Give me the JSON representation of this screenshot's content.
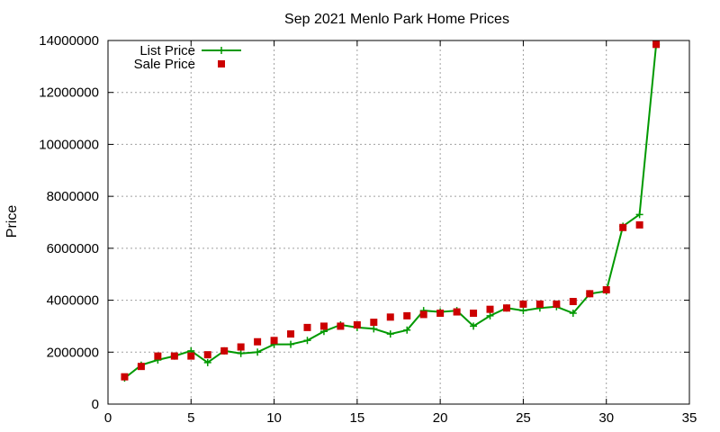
{
  "chart_data": {
    "type": "line",
    "title": "Sep 2021 Menlo Park Home Prices",
    "xlabel": "",
    "ylabel": "Price",
    "xlim": [
      0,
      35
    ],
    "ylim": [
      0,
      14000000
    ],
    "xticks": [
      0,
      5,
      10,
      15,
      20,
      25,
      30,
      35
    ],
    "yticks": [
      0,
      2000000,
      4000000,
      6000000,
      8000000,
      10000000,
      12000000,
      14000000
    ],
    "xtick_labels": [
      "0",
      "5",
      "10",
      "15",
      "20",
      "25",
      "30",
      "35"
    ],
    "ytick_labels": [
      "0",
      "2000000",
      "4000000",
      "6000000",
      "8000000",
      "10000000",
      "12000000",
      "14000000"
    ],
    "grid": true,
    "legend_position": "top-left",
    "series": [
      {
        "name": "List Price",
        "style": "line-plus",
        "color": "#009900",
        "x": [
          1,
          2,
          3,
          4,
          5,
          6,
          7,
          8,
          9,
          10,
          11,
          12,
          13,
          14,
          15,
          16,
          17,
          18,
          19,
          20,
          21,
          22,
          23,
          24,
          25,
          26,
          27,
          28,
          29,
          30,
          31,
          32,
          33
        ],
        "y": [
          1000000,
          1500000,
          1700000,
          1850000,
          2050000,
          1600000,
          2050000,
          1950000,
          2000000,
          2300000,
          2300000,
          2450000,
          2800000,
          3050000,
          2950000,
          2900000,
          2700000,
          2850000,
          3600000,
          3550000,
          3600000,
          3000000,
          3400000,
          3700000,
          3600000,
          3700000,
          3750000,
          3500000,
          4250000,
          4350000,
          6850000,
          7300000,
          13850000
        ]
      },
      {
        "name": "Sale Price",
        "style": "square-marker",
        "color": "#cc0000",
        "x": [
          1,
          2,
          3,
          4,
          5,
          6,
          7,
          8,
          9,
          10,
          11,
          12,
          13,
          14,
          15,
          16,
          17,
          18,
          19,
          20,
          21,
          22,
          23,
          24,
          25,
          26,
          27,
          28,
          29,
          30,
          31,
          32,
          33
        ],
        "y": [
          1050000,
          1450000,
          1850000,
          1850000,
          1850000,
          1900000,
          2050000,
          2200000,
          2400000,
          2450000,
          2700000,
          2950000,
          3000000,
          3000000,
          3050000,
          3150000,
          3350000,
          3400000,
          3450000,
          3500000,
          3550000,
          3500000,
          3650000,
          3700000,
          3850000,
          3850000,
          3850000,
          3950000,
          4250000,
          4400000,
          6800000,
          6900000,
          13850000
        ]
      }
    ]
  }
}
